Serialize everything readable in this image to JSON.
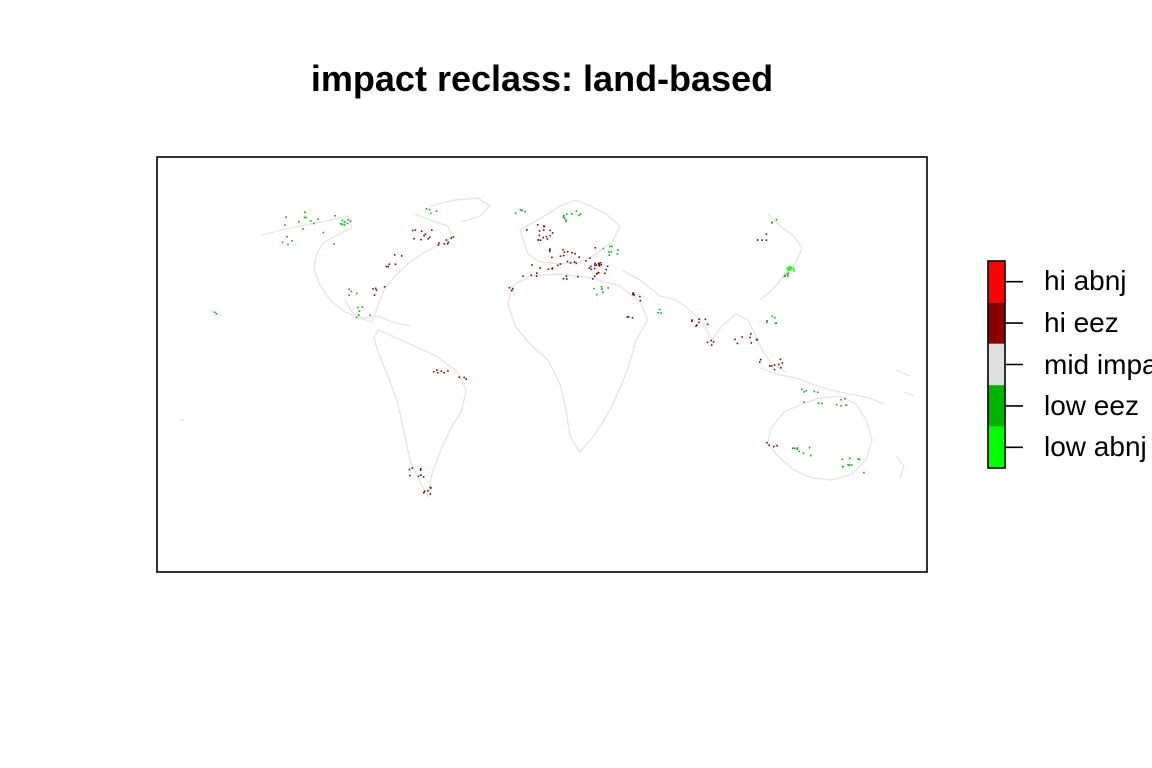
{
  "title": "impact reclass: land-based",
  "legend": {
    "items": [
      {
        "label": "hi abnj",
        "color": "#ff0000"
      },
      {
        "label": "hi eez",
        "color": "#8b0000"
      },
      {
        "label": "mid impact",
        "color": "#e0e0e0"
      },
      {
        "label": "low eez",
        "color": "#00b400"
      },
      {
        "label": "low abnj",
        "color": "#00ff00"
      }
    ]
  },
  "map": {
    "projection": "world raster, longitude 0-360 (Pacific-centred)",
    "background": "#ffffff",
    "coastline_color": "#e6e6e6"
  }
}
